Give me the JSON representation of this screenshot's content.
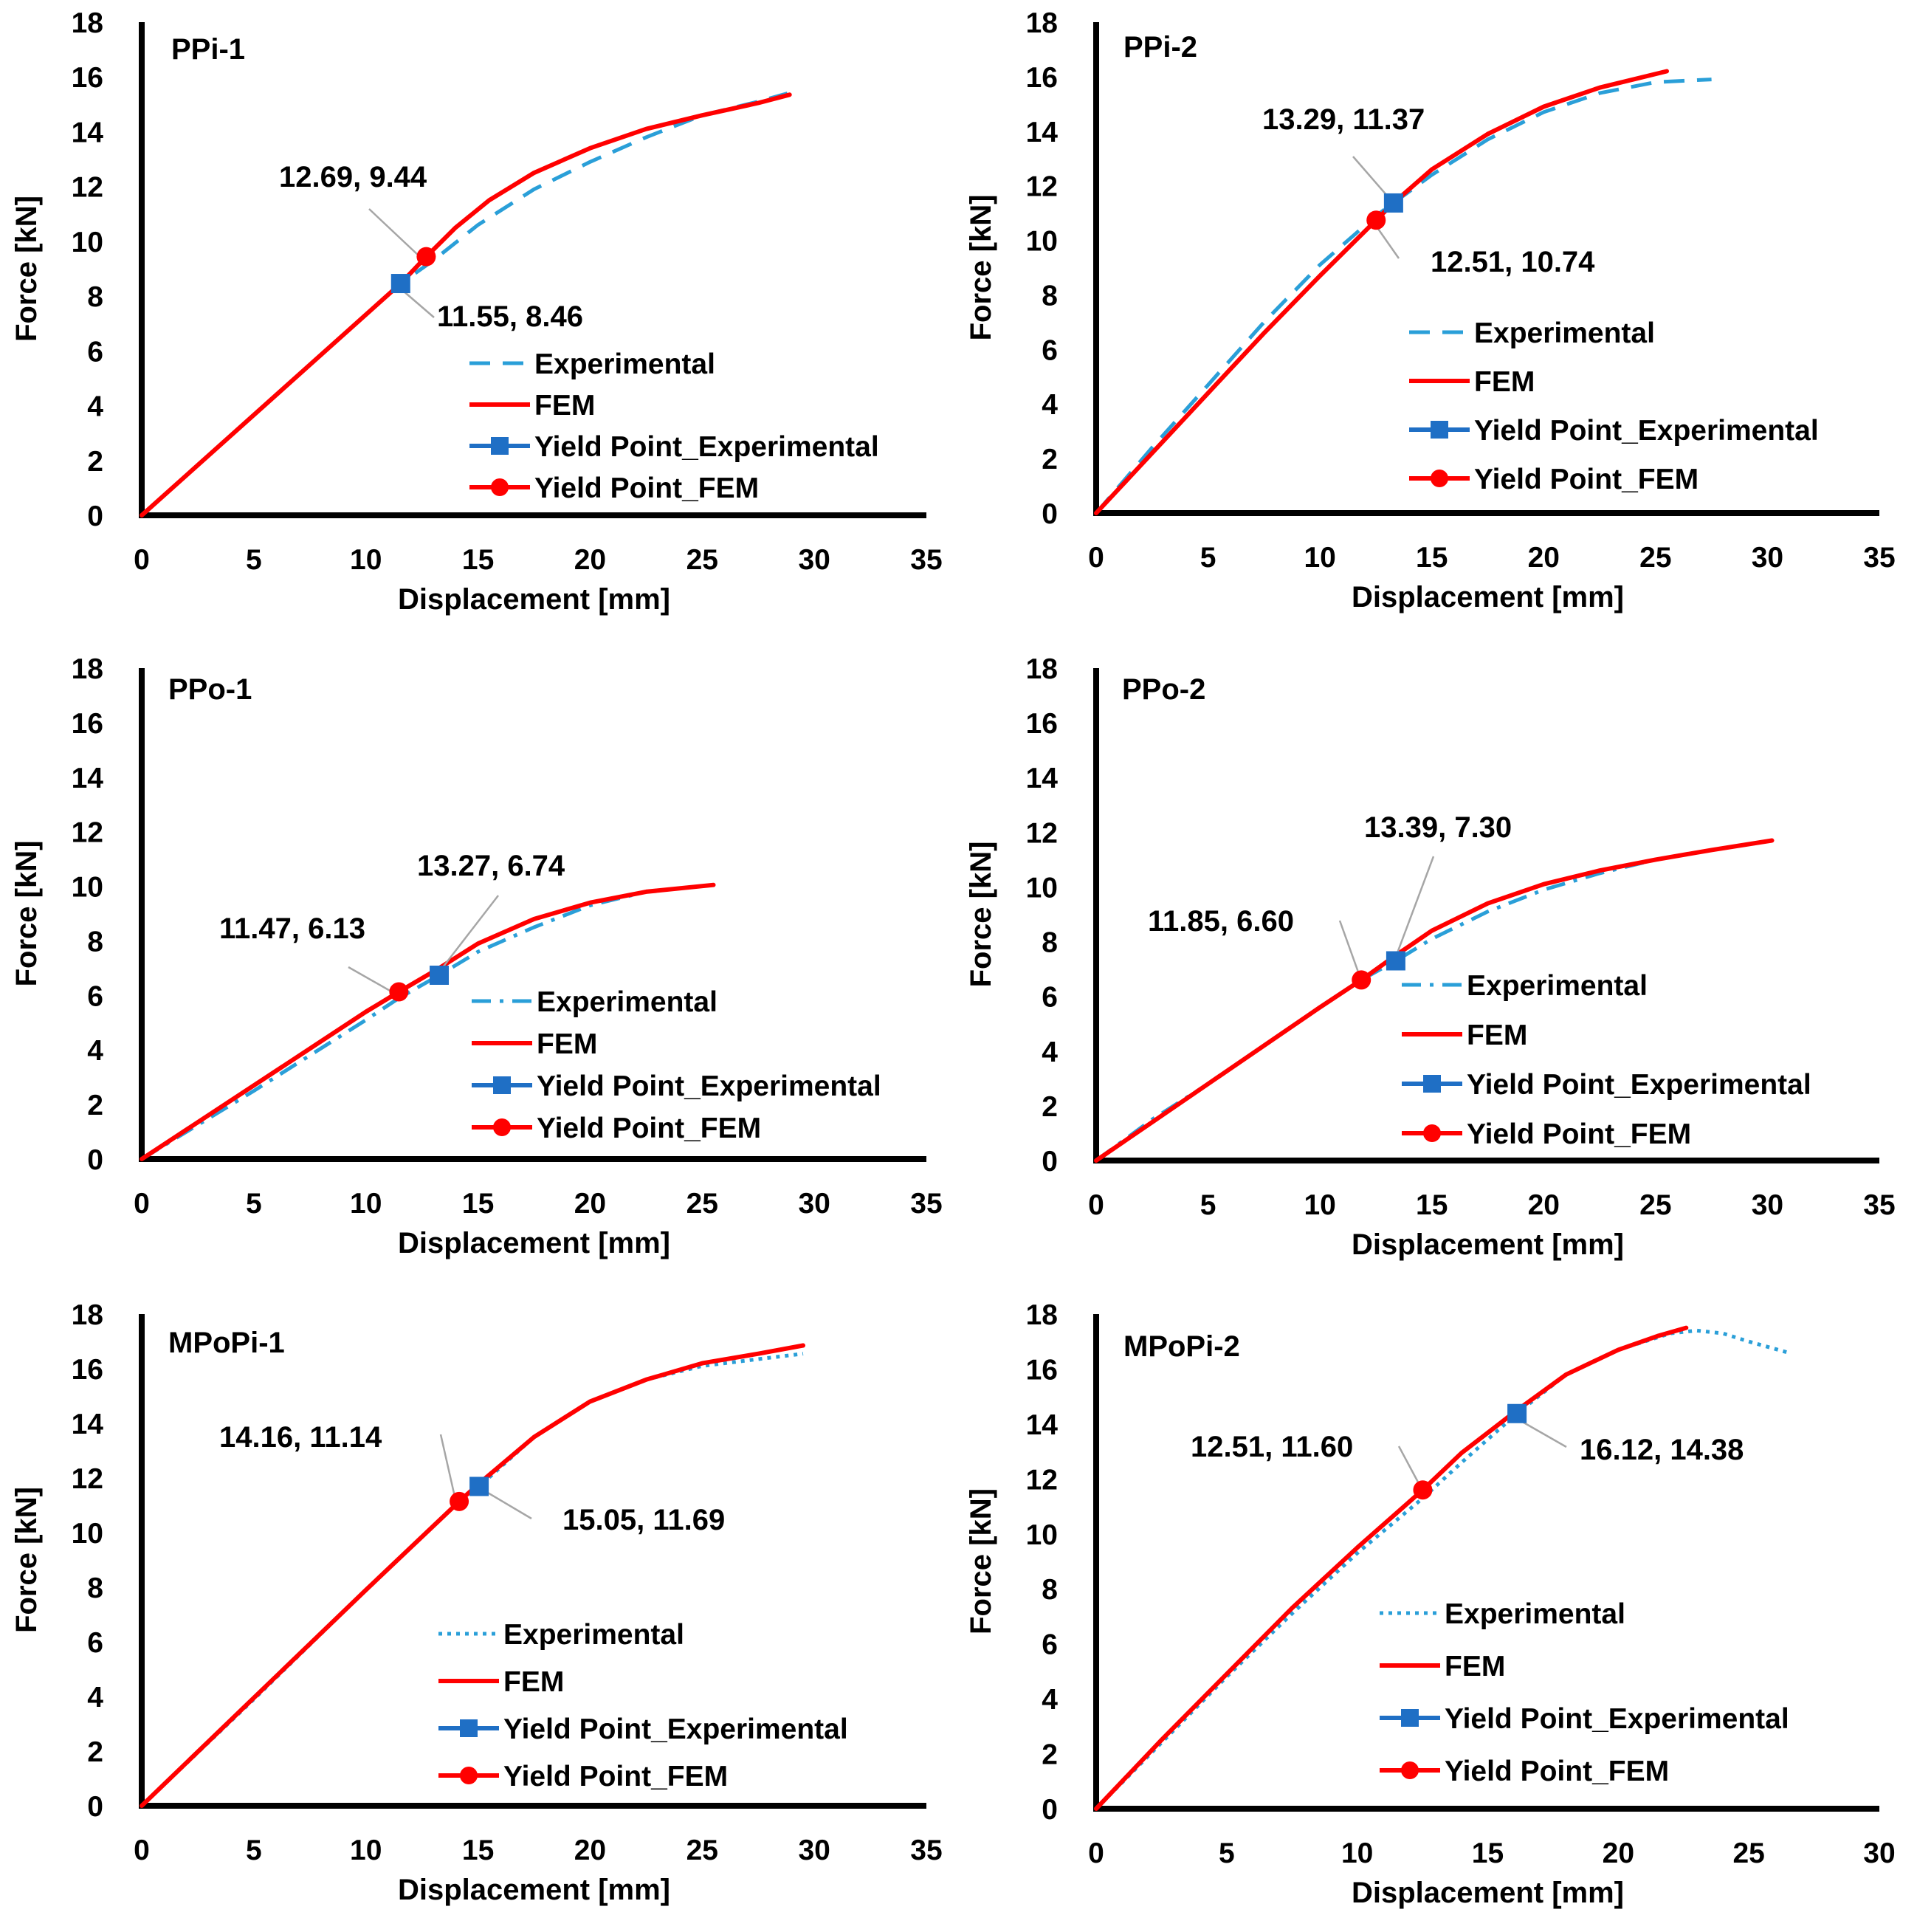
{
  "legend_labels": {
    "experimental": "Experimental",
    "fem": "FEM",
    "yield_exp": "Yield Point_Experimental",
    "yield_fem": "Yield Point_FEM"
  },
  "colors": {
    "experimental": "#2A9FD8",
    "fem": "#FF0000",
    "yield_exp": "#1F6FC5",
    "yield_fem": "#FF0000",
    "axis": "#000000",
    "leader": "#A6A6A6"
  },
  "chart_data": [
    {
      "type": "line",
      "title": "PPi-1",
      "xlabel": "Displacement [mm]",
      "ylabel": "Force [kN]",
      "xlim": [
        0,
        35
      ],
      "ylim": [
        0,
        18
      ],
      "xticks": [
        0,
        5,
        10,
        15,
        20,
        25,
        30,
        35
      ],
      "yticks": [
        0,
        2,
        4,
        6,
        8,
        10,
        12,
        14,
        16,
        18
      ],
      "exp_style": "dashed",
      "series": [
        {
          "name": "Experimental",
          "x": [
            0,
            11.55,
            13,
            15,
            17.5,
            20,
            22.5,
            25,
            27.5,
            28.8
          ],
          "y": [
            0,
            8.46,
            9.3,
            10.6,
            11.9,
            12.9,
            13.8,
            14.6,
            15.1,
            15.4
          ]
        },
        {
          "name": "FEM",
          "x": [
            0,
            11.55,
            12.69,
            14,
            15.5,
            17.5,
            20,
            22.5,
            25,
            27.5,
            28.9
          ],
          "y": [
            0,
            8.46,
            9.44,
            10.5,
            11.5,
            12.5,
            13.4,
            14.1,
            14.6,
            15.05,
            15.35
          ]
        }
      ],
      "yield_experimental": {
        "x": 11.55,
        "y": 8.46,
        "label": "11.55, 8.46"
      },
      "yield_fem": {
        "x": 12.69,
        "y": 9.44,
        "label": "12.69, 9.44"
      }
    },
    {
      "type": "line",
      "title": "PPi-2",
      "xlabel": "Displacement [mm]",
      "ylabel": "Force [kN]",
      "xlim": [
        0,
        35
      ],
      "ylim": [
        0,
        18
      ],
      "xticks": [
        0,
        5,
        10,
        15,
        20,
        25,
        30,
        35
      ],
      "yticks": [
        0,
        2,
        4,
        6,
        8,
        10,
        12,
        14,
        16,
        18
      ],
      "exp_style": "dashed",
      "series": [
        {
          "name": "Experimental",
          "x": [
            0,
            2.5,
            5,
            7.5,
            10,
            12.51,
            13.29,
            15,
            17.5,
            20,
            22.5,
            25,
            27.5
          ],
          "y": [
            0,
            2.4,
            4.7,
            7.0,
            9.1,
            10.9,
            11.37,
            12.4,
            13.7,
            14.7,
            15.4,
            15.8,
            15.9
          ]
        },
        {
          "name": "FEM",
          "x": [
            0,
            2.5,
            5,
            7.5,
            10,
            12.51,
            13.29,
            15,
            17.5,
            20,
            22.5,
            25.5
          ],
          "y": [
            0,
            2.2,
            4.4,
            6.6,
            8.7,
            10.74,
            11.37,
            12.6,
            13.9,
            14.9,
            15.6,
            16.2
          ]
        }
      ],
      "yield_experimental": {
        "x": 13.29,
        "y": 11.37,
        "label": "13.29, 11.37"
      },
      "yield_fem": {
        "x": 12.51,
        "y": 10.74,
        "label": "12.51, 10.74"
      }
    },
    {
      "type": "line",
      "title": "PPo-1",
      "xlabel": "Displacement [mm]",
      "ylabel": "Force [kN]",
      "xlim": [
        0,
        35
      ],
      "ylim": [
        0,
        18
      ],
      "xticks": [
        0,
        5,
        10,
        15,
        20,
        25,
        30,
        35
      ],
      "yticks": [
        0,
        2,
        4,
        6,
        8,
        10,
        12,
        14,
        16,
        18
      ],
      "exp_style": "dashdot",
      "series": [
        {
          "name": "Experimental",
          "x": [
            0,
            5,
            10,
            11.47,
            13.27,
            15,
            17.5,
            20,
            22
          ],
          "y": [
            0,
            2.5,
            5.1,
            5.9,
            6.74,
            7.6,
            8.5,
            9.3,
            9.7
          ]
        },
        {
          "name": "FEM",
          "x": [
            0,
            5,
            10,
            11.47,
            13.27,
            15,
            17.5,
            20,
            22.5,
            25.5
          ],
          "y": [
            0,
            2.7,
            5.4,
            6.13,
            7.0,
            7.9,
            8.8,
            9.4,
            9.8,
            10.05
          ]
        }
      ],
      "yield_experimental": {
        "x": 13.27,
        "y": 6.74,
        "label": "13.27, 6.74"
      },
      "yield_fem": {
        "x": 11.47,
        "y": 6.13,
        "label": "11.47, 6.13"
      }
    },
    {
      "type": "line",
      "title": "PPo-2",
      "xlabel": "Displacement [mm]",
      "ylabel": "Force [kN]",
      "xlim": [
        0,
        35
      ],
      "ylim": [
        0,
        18
      ],
      "xticks": [
        0,
        5,
        10,
        15,
        20,
        25,
        30,
        35
      ],
      "yticks": [
        0,
        2,
        4,
        6,
        8,
        10,
        12,
        14,
        16,
        18
      ],
      "exp_style": "dashdot",
      "series": [
        {
          "name": "Experimental",
          "x": [
            0,
            2.5,
            5,
            7.5,
            10,
            11.85,
            13.39,
            15,
            17.5,
            20,
            22.5,
            25
          ],
          "y": [
            0,
            1.5,
            2.8,
            4.2,
            5.6,
            6.6,
            7.3,
            8.1,
            9.1,
            9.9,
            10.5,
            11.0
          ]
        },
        {
          "name": "FEM",
          "x": [
            0,
            5,
            10,
            11.85,
            13.39,
            15,
            17.5,
            20,
            22.5,
            25,
            27.5,
            30.2
          ],
          "y": [
            0,
            2.8,
            5.6,
            6.6,
            7.5,
            8.4,
            9.4,
            10.1,
            10.6,
            11.0,
            11.35,
            11.7
          ]
        }
      ],
      "yield_experimental": {
        "x": 13.39,
        "y": 7.3,
        "label": "13.39, 7.30"
      },
      "yield_fem": {
        "x": 11.85,
        "y": 6.6,
        "label": "11.85, 6.60"
      }
    },
    {
      "type": "line",
      "title": "MPoPi-1",
      "xlabel": "Displacement [mm]",
      "ylabel": "Force [kN]",
      "xlim": [
        0,
        35
      ],
      "ylim": [
        0,
        18
      ],
      "xticks": [
        0,
        5,
        10,
        15,
        20,
        25,
        30,
        35
      ],
      "yticks": [
        0,
        2,
        4,
        6,
        8,
        10,
        12,
        14,
        16,
        18
      ],
      "exp_style": "dotted",
      "series": [
        {
          "name": "Experimental",
          "x": [
            0,
            5,
            10,
            14.16,
            15.05,
            17.5,
            20,
            22.5,
            25,
            27.5,
            29.5
          ],
          "y": [
            0,
            3.9,
            7.9,
            11.14,
            11.69,
            13.5,
            14.8,
            15.6,
            16.1,
            16.35,
            16.55
          ]
        },
        {
          "name": "FEM",
          "x": [
            0,
            5,
            10,
            14.16,
            15.05,
            17.5,
            20,
            22.5,
            25,
            27.5,
            29.5
          ],
          "y": [
            0,
            3.95,
            7.9,
            11.14,
            11.8,
            13.5,
            14.8,
            15.6,
            16.2,
            16.55,
            16.85
          ]
        }
      ],
      "yield_experimental": {
        "x": 15.05,
        "y": 11.69,
        "label": "15.05, 11.69"
      },
      "yield_fem": {
        "x": 14.16,
        "y": 11.14,
        "label": "14.16, 11.14"
      }
    },
    {
      "type": "line",
      "title": "MPoPi-2",
      "xlabel": "Displacement [mm]",
      "ylabel": "Force [kN]",
      "xlim": [
        0,
        30
      ],
      "ylim": [
        0,
        18
      ],
      "xticks": [
        0,
        5,
        10,
        15,
        20,
        25,
        30
      ],
      "yticks": [
        0,
        2,
        4,
        6,
        8,
        10,
        12,
        14,
        16,
        18
      ],
      "exp_style": "dotted",
      "series": [
        {
          "name": "Experimental",
          "x": [
            0,
            2.5,
            5,
            7.5,
            10,
            12.51,
            14,
            16.12,
            18,
            20,
            22,
            23,
            24,
            25,
            26.5
          ],
          "y": [
            0,
            2.4,
            4.8,
            7.1,
            9.3,
            11.3,
            12.6,
            14.38,
            15.8,
            16.7,
            17.3,
            17.4,
            17.3,
            17.0,
            16.6
          ]
        },
        {
          "name": "FEM",
          "x": [
            0,
            2.5,
            5,
            7.5,
            10,
            12.51,
            14,
            16.12,
            18,
            20,
            21.5,
            22.6
          ],
          "y": [
            0,
            2.5,
            4.9,
            7.3,
            9.5,
            11.6,
            12.95,
            14.5,
            15.8,
            16.7,
            17.2,
            17.5
          ]
        }
      ],
      "yield_experimental": {
        "x": 16.12,
        "y": 14.38,
        "label": "16.12, 14.38"
      },
      "yield_fem": {
        "x": 12.51,
        "y": 11.6,
        "label": "12.51, 11.60"
      }
    }
  ]
}
